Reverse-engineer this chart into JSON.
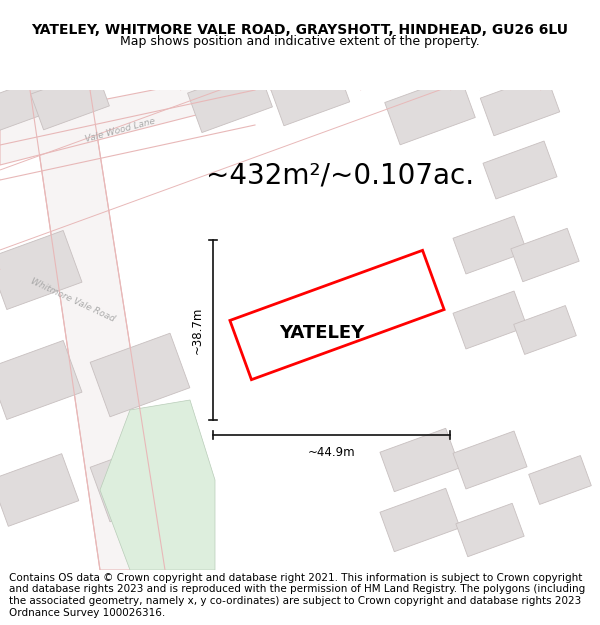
{
  "title": "YATELEY, WHITMORE VALE ROAD, GRAYSHOTT, HINDHEAD, GU26 6LU",
  "subtitle": "Map shows position and indicative extent of the property.",
  "area_text": "~432m²/~0.107ac.",
  "property_label": "YATELEY",
  "dim_height": "~38.7m",
  "dim_width": "~44.9m",
  "footer_text": "Contains OS data © Crown copyright and database right 2021. This information is subject to Crown copyright and database rights 2023 and is reproduced with the permission of HM Land Registry. The polygons (including the associated geometry, namely x, y co-ordinates) are subject to Crown copyright and database rights 2023 Ordnance Survey 100026316.",
  "bg_color": "#f7f4f4",
  "road_line_color": "#e8b8b8",
  "building_color": "#e0dcdc",
  "building_edge": "#c8c0c0",
  "property_color": "red",
  "green_area_color": "#ddeedd",
  "title_fontsize": 10,
  "subtitle_fontsize": 9,
  "area_fontsize": 20,
  "label_fontsize": 13,
  "footer_fontsize": 7.5,
  "road_label_color": "#aaaaaa",
  "dim_line_color": "#111111"
}
